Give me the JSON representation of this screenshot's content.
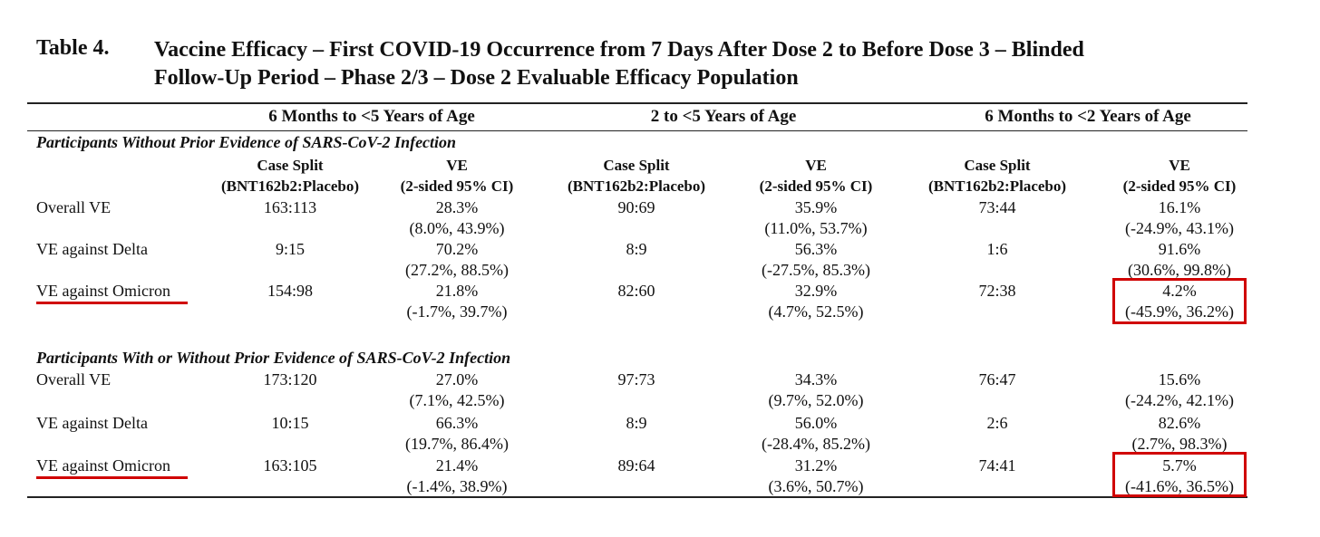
{
  "table": {
    "label": "Table 4.",
    "title_line1": "Vaccine Efficacy – First COVID-19 Occurrence from 7 Days After Dose 2 to Before Dose 3 – Blinded",
    "title_line2": "Follow-Up Period – Phase 2/3 – Dose 2 Evaluable Efficacy Population",
    "groups": [
      "6 Months to <5 Years of Age",
      "2 to <5 Years of Age",
      "6 Months to <2 Years of Age"
    ],
    "sub_headers": {
      "case_split_1": "Case Split",
      "case_split_2": "(BNT162b2:Placebo)",
      "ve_1": "VE",
      "ve_2": "(2-sided 95% CI)"
    },
    "sections": [
      {
        "heading": "Participants Without Prior Evidence of SARS-CoV-2 Infection",
        "rows": [
          {
            "label": "Overall VE",
            "cells": [
              {
                "split": "163:113",
                "ve": "28.3%",
                "ci": "(8.0%, 43.9%)"
              },
              {
                "split": "90:69",
                "ve": "35.9%",
                "ci": "(11.0%, 53.7%)"
              },
              {
                "split": "73:44",
                "ve": "16.1%",
                "ci": "(-24.9%, 43.1%)"
              }
            ]
          },
          {
            "label": "VE against Delta",
            "cells": [
              {
                "split": "9:15",
                "ve": "70.2%",
                "ci": "(27.2%, 88.5%)"
              },
              {
                "split": "8:9",
                "ve": "56.3%",
                "ci": "(-27.5%, 85.3%)"
              },
              {
                "split": "1:6",
                "ve": "91.6%",
                "ci": "(30.6%, 99.8%)"
              }
            ]
          },
          {
            "label": "VE against Omicron",
            "cells": [
              {
                "split": "154:98",
                "ve": "21.8%",
                "ci": "(-1.7%, 39.7%)"
              },
              {
                "split": "82:60",
                "ve": "32.9%",
                "ci": "(4.7%, 52.5%)"
              },
              {
                "split": "72:38",
                "ve": "4.2%",
                "ci": "(-45.9%, 36.2%)"
              }
            ]
          }
        ]
      },
      {
        "heading": "Participants With or Without Prior Evidence of SARS-CoV-2 Infection",
        "rows": [
          {
            "label": "Overall VE",
            "cells": [
              {
                "split": "173:120",
                "ve": "27.0%",
                "ci": "(7.1%, 42.5%)"
              },
              {
                "split": "97:73",
                "ve": "34.3%",
                "ci": "(9.7%, 52.0%)"
              },
              {
                "split": "76:47",
                "ve": "15.6%",
                "ci": "(-24.2%, 42.1%)"
              }
            ]
          },
          {
            "label": "VE against Delta",
            "cells": [
              {
                "split": "10:15",
                "ve": "66.3%",
                "ci": "(19.7%, 86.4%)"
              },
              {
                "split": "8:9",
                "ve": "56.0%",
                "ci": "(-28.4%, 85.2%)"
              },
              {
                "split": "2:6",
                "ve": "82.6%",
                "ci": "(2.7%, 98.3%)"
              }
            ]
          },
          {
            "label": "VE against Omicron",
            "cells": [
              {
                "split": "163:105",
                "ve": "21.4%",
                "ci": "(-1.4%, 38.9%)"
              },
              {
                "split": "89:64",
                "ve": "31.2%",
                "ci": "(3.6%, 50.7%)"
              },
              {
                "split": "74:41",
                "ve": "5.7%",
                "ci": "(-41.6%, 36.5%)"
              }
            ]
          }
        ]
      }
    ]
  },
  "highlight_color": "#d00000"
}
